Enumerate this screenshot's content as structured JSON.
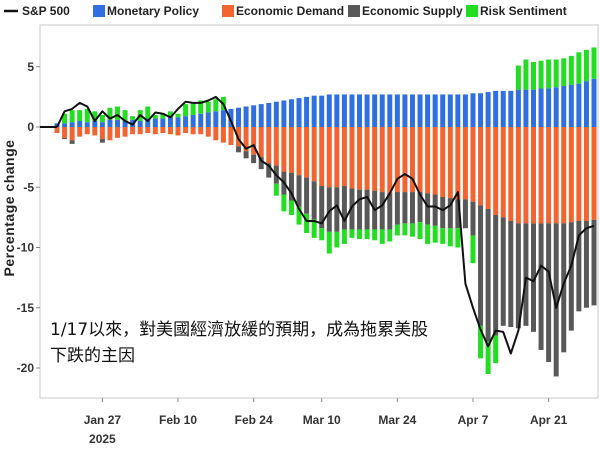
{
  "chart_data": {
    "type": "bar",
    "subtype": "stacked bar with line overlay",
    "ylabel": "Percentage change",
    "ylim": [
      -22,
      7.5
    ],
    "yticks": [
      5,
      0,
      -5,
      -10,
      -15,
      -20
    ],
    "ytick_labels": [
      "5",
      "0",
      "-5",
      "-10",
      "-15",
      "-20"
    ],
    "xticks": [
      {
        "label": "Jan 27",
        "sub": "2025",
        "idx": 6
      },
      {
        "label": "Feb 10",
        "sub": "",
        "idx": 16
      },
      {
        "label": "Feb 24",
        "sub": "",
        "idx": 26
      },
      {
        "label": "Mar 10",
        "sub": "",
        "idx": 35
      },
      {
        "label": "Mar 24",
        "sub": "",
        "idx": 45
      },
      {
        "label": "Apr 7",
        "sub": "",
        "idx": 55
      },
      {
        "label": "Apr 21",
        "sub": "",
        "idx": 65
      }
    ],
    "legend_position": "top",
    "colors": {
      "sp500": "#111111",
      "monetary": "#2f6fe0",
      "demand": "#f26430",
      "supply": "#585858",
      "risk": "#22dd22"
    },
    "series": [
      {
        "name": "Monetary Policy",
        "key": "monetary",
        "values": [
          0.3,
          0.3,
          0.4,
          0.5,
          0.4,
          0.5,
          0.4,
          0.6,
          0.6,
          0.5,
          0.6,
          0.5,
          0.7,
          0.7,
          0.7,
          0.8,
          0.8,
          0.9,
          1.0,
          1.1,
          1.2,
          1.3,
          1.4,
          1.5,
          1.6,
          1.7,
          1.8,
          1.9,
          2.0,
          2.1,
          2.2,
          2.3,
          2.4,
          2.5,
          2.6,
          2.6,
          2.7,
          2.7,
          2.7,
          2.7,
          2.7,
          2.7,
          2.7,
          2.7,
          2.7,
          2.7,
          2.7,
          2.7,
          2.7,
          2.7,
          2.7,
          2.7,
          2.7,
          2.7,
          2.7,
          2.8,
          2.8,
          2.9,
          3.0,
          3.0,
          3.0,
          3.1,
          3.1,
          3.1,
          3.2,
          3.2,
          3.3,
          3.4,
          3.5,
          3.6,
          3.8,
          4.0
        ]
      },
      {
        "name": "Economic Demand",
        "key": "demand",
        "values": [
          -0.5,
          -0.9,
          -1.1,
          -0.8,
          -0.6,
          -0.7,
          -1.0,
          -1.1,
          -0.9,
          -0.8,
          -0.6,
          -0.6,
          -0.5,
          -0.6,
          -0.5,
          -0.6,
          -0.7,
          -0.5,
          -0.6,
          -0.6,
          -0.8,
          -1.1,
          -1.3,
          -1.5,
          -1.6,
          -2.0,
          -2.3,
          -2.5,
          -3.0,
          -3.2,
          -3.7,
          -3.8,
          -4.0,
          -4.2,
          -4.5,
          -4.9,
          -5.0,
          -5.0,
          -4.9,
          -5.1,
          -5.2,
          -5.2,
          -5.3,
          -5.4,
          -5.5,
          -5.4,
          -5.4,
          -5.4,
          -5.4,
          -5.5,
          -5.6,
          -5.8,
          -5.9,
          -6.0,
          -6.0,
          -6.2,
          -6.5,
          -6.8,
          -7.3,
          -7.5,
          -7.8,
          -8.0,
          -8.0,
          -8.0,
          -8.0,
          -8.0,
          -8.0,
          -8.0,
          -7.9,
          -7.8,
          -7.8,
          -7.7
        ]
      },
      {
        "name": "Economic Supply",
        "key": "supply",
        "values": [
          0.0,
          -0.1,
          -0.3,
          0.0,
          0.0,
          0.0,
          -0.3,
          0.0,
          0.0,
          0.0,
          0.0,
          0.0,
          0.0,
          0.0,
          0.0,
          0.0,
          0.0,
          0.0,
          0.0,
          0.0,
          0.0,
          0.0,
          0.0,
          0.0,
          -0.5,
          -0.6,
          -0.7,
          -1.0,
          -1.2,
          -1.5,
          -1.9,
          -2.3,
          -2.6,
          -3.0,
          -3.2,
          -3.5,
          -3.7,
          -3.7,
          -3.6,
          -3.4,
          -3.3,
          -3.3,
          -3.2,
          -3.1,
          -3.0,
          -2.7,
          -2.6,
          -2.6,
          -2.5,
          -2.6,
          -2.6,
          -2.6,
          -2.5,
          -2.4,
          -2.4,
          -2.8,
          -10.0,
          -11.0,
          -10.0,
          -9.0,
          -8.8,
          -8.7,
          -8.5,
          -9.0,
          -10.5,
          -11.5,
          -12.7,
          -10.7,
          -9.0,
          -7.5,
          -7.2,
          -7.1
        ]
      },
      {
        "name": "Risk Sentiment",
        "key": "risk",
        "values": [
          0.0,
          0.8,
          1.0,
          0.9,
          1.1,
          0.8,
          0.6,
          1.0,
          1.1,
          0.9,
          0.3,
          0.9,
          1.0,
          0.3,
          0.4,
          0.5,
          0.3,
          1.0,
          1.0,
          1.1,
          0.9,
          1.0,
          1.1,
          0.0,
          0.0,
          0.0,
          0.0,
          0.0,
          0.0,
          -1.0,
          -1.4,
          -1.2,
          -1.5,
          -1.6,
          -1.5,
          -1.0,
          -1.8,
          -1.3,
          -1.2,
          -0.7,
          -0.8,
          -0.8,
          -0.9,
          -1.2,
          -1.0,
          -0.9,
          -1.0,
          -1.1,
          -1.4,
          -1.6,
          -1.4,
          -1.3,
          -1.5,
          -1.6,
          0.0,
          -2.3,
          -2.7,
          -2.7,
          -2.3,
          0.0,
          0.0,
          2.0,
          2.5,
          2.3,
          2.3,
          2.4,
          2.3,
          2.3,
          2.4,
          2.6,
          2.6,
          2.6
        ]
      },
      {
        "name": "S&P 500",
        "key": "sp500",
        "values": [
          0.0,
          1.3,
          1.5,
          2.0,
          1.7,
          0.5,
          1.3,
          0.7,
          1.0,
          0.5,
          0.2,
          1.0,
          0.5,
          1.2,
          1.1,
          0.8,
          1.5,
          2.1,
          2.0,
          2.0,
          2.2,
          2.5,
          1.9,
          0.5,
          -1.0,
          -1.8,
          -1.5,
          -2.8,
          -3.2,
          -4.0,
          -4.6,
          -5.5,
          -6.8,
          -7.8,
          -7.8,
          -8.0,
          -7.0,
          -6.5,
          -7.8,
          -6.6,
          -6.0,
          -5.8,
          -6.9,
          -6.5,
          -5.5,
          -4.3,
          -3.9,
          -4.3,
          -5.6,
          -6.6,
          -6.6,
          -6.9,
          -6.5,
          -5.4,
          -13.0,
          -15.0,
          -16.8,
          -18.2,
          -16.9,
          -17.0,
          -18.8,
          -16.9,
          -12.5,
          -12.8,
          -11.5,
          -12.0,
          -15.0,
          -13.0,
          -11.5,
          -9.0,
          -8.4,
          -8.2
        ]
      }
    ],
    "annotation": [
      "1/17以來，對美國經濟放緩的預期，成為拖累美股",
      "下跌的主因"
    ]
  }
}
